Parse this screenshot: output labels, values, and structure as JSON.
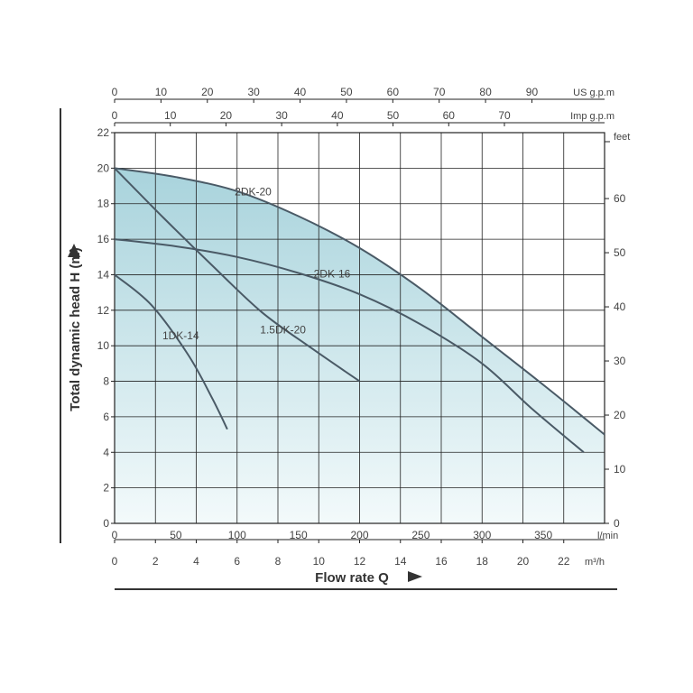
{
  "chart_data": {
    "type": "line",
    "title": "",
    "ylabel": "Total dynamic head H (m)",
    "xlabel": "Flow rate Q",
    "ylim": [
      0,
      22
    ],
    "y_ticks": [
      0,
      2,
      4,
      6,
      8,
      10,
      12,
      14,
      16,
      18,
      20,
      22
    ],
    "xlim_lmin": [
      0,
      400
    ],
    "grid": true,
    "axes": {
      "bottom_lmin": {
        "unit": "l/min",
        "ticks": [
          0,
          50,
          100,
          150,
          200,
          250,
          300,
          350
        ]
      },
      "bottom_m3h": {
        "unit": "m³/h",
        "ticks": [
          0,
          2,
          4,
          6,
          8,
          10,
          12,
          14,
          16,
          18,
          20,
          22
        ]
      },
      "top_us_gpm": {
        "unit": "US g.p.m",
        "ticks": [
          0,
          10,
          20,
          30,
          40,
          50,
          60,
          70,
          80,
          90
        ]
      },
      "top_imp_gpm": {
        "unit": "Imp g.p.m",
        "ticks": [
          0,
          10,
          20,
          30,
          40,
          50,
          60,
          70
        ]
      },
      "right_feet": {
        "unit": "feet",
        "ticks": [
          0,
          10,
          20,
          30,
          40,
          50,
          60
        ]
      }
    },
    "series": [
      {
        "name": "2DK-20",
        "x": [
          0,
          50,
          100,
          150,
          200,
          250,
          300,
          350,
          400
        ],
        "y": [
          20,
          19.5,
          18.7,
          17.3,
          15.5,
          13.2,
          10.5,
          7.8,
          5
        ]
      },
      {
        "name": "2DK-16",
        "x": [
          0,
          50,
          100,
          150,
          200,
          250,
          300,
          340,
          383
        ],
        "y": [
          16,
          15.6,
          15,
          14.1,
          12.9,
          11.2,
          9,
          6.5,
          4
        ]
      },
      {
        "name": "1.5DK-20",
        "x": [
          0,
          40,
          80,
          120,
          160,
          200
        ],
        "y": [
          20,
          17.2,
          14.5,
          11.9,
          9.9,
          8
        ]
      },
      {
        "name": "1DK-14",
        "x": [
          0,
          30,
          60,
          80,
          92
        ],
        "y": [
          14,
          12.3,
          9.5,
          7,
          5.3
        ]
      }
    ],
    "colors": {
      "curve": "#4a5a66",
      "fill_top": "#a8d3dc",
      "fill_bottom": "#f3fafb",
      "grid": "#222222"
    }
  }
}
